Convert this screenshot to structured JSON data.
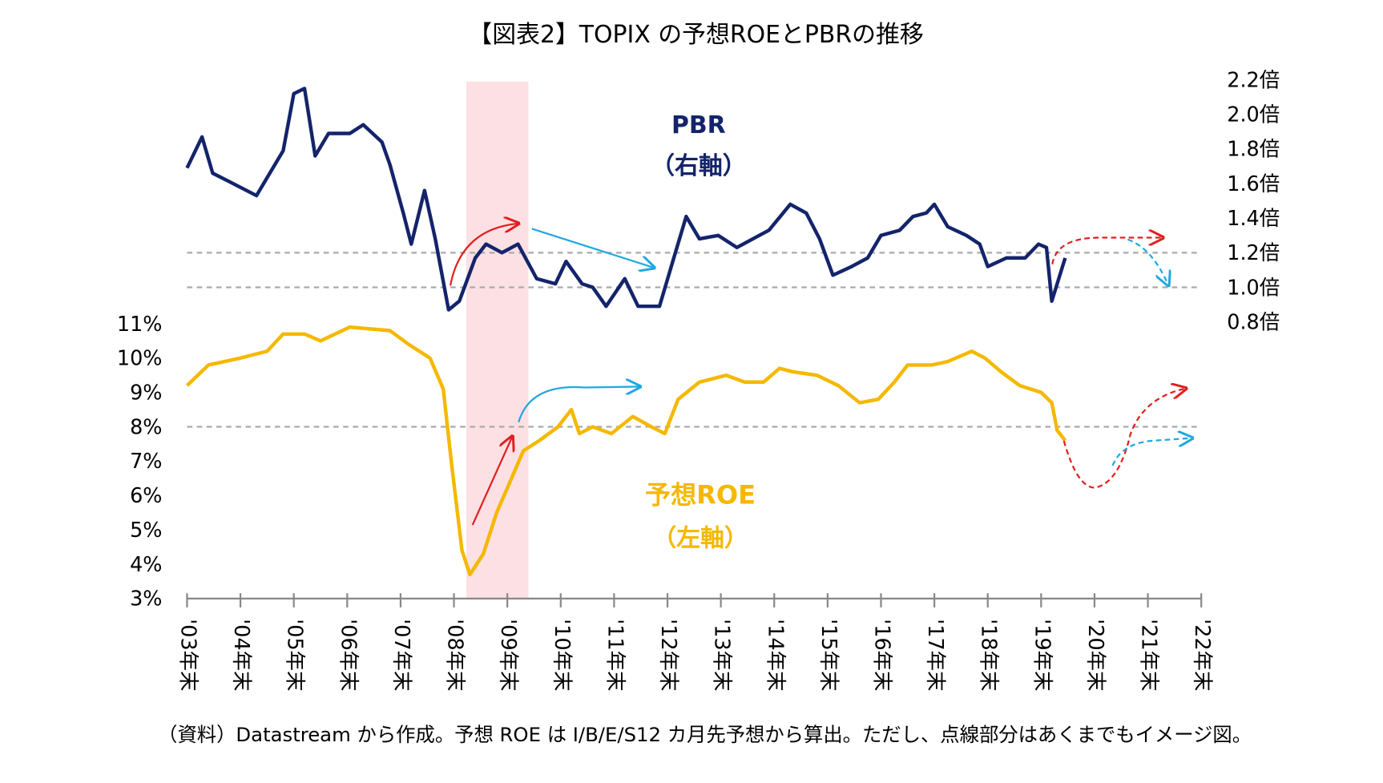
{
  "chart_data": {
    "type": "line",
    "title": "【図表2】TOPIX の予想ROEとPBRの推移",
    "source": "（資料）Datastream から作成。予想 ROE は I/B/E/S12 カ月先予想から算出。ただし、点線部分はあくまでもイメージ図。",
    "xlim": [
      2003,
      2022
    ],
    "xticks": [
      {
        "value": 2003,
        "label": "'03年末"
      },
      {
        "value": 2004,
        "label": "'04年末"
      },
      {
        "value": 2005,
        "label": "'05年末"
      },
      {
        "value": 2006,
        "label": "'06年末"
      },
      {
        "value": 2007,
        "label": "'07年末"
      },
      {
        "value": 2008,
        "label": "'08年末"
      },
      {
        "value": 2009,
        "label": "'09年末"
      },
      {
        "value": 2010,
        "label": "'10年末"
      },
      {
        "value": 2011,
        "label": "'11年末"
      },
      {
        "value": 2012,
        "label": "'12年末"
      },
      {
        "value": 2013,
        "label": "'13年末"
      },
      {
        "value": 2014,
        "label": "'14年末"
      },
      {
        "value": 2015,
        "label": "'15年末"
      },
      {
        "value": 2016,
        "label": "'16年末"
      },
      {
        "value": 2017,
        "label": "'17年末"
      },
      {
        "value": 2018,
        "label": "'18年末"
      },
      {
        "value": 2019,
        "label": "'19年末"
      },
      {
        "value": 2020,
        "label": "'20年末"
      },
      {
        "value": 2021,
        "label": "'21年末"
      },
      {
        "value": 2022,
        "label": "'22年末"
      }
    ],
    "ylim": [
      3,
      18.1
    ],
    "yticks": [
      {
        "value": 3,
        "label": "3%"
      },
      {
        "value": 4,
        "label": "4%"
      },
      {
        "value": 5,
        "label": "5%"
      },
      {
        "value": 6,
        "label": "6%"
      },
      {
        "value": 7,
        "label": "7%"
      },
      {
        "value": 8,
        "label": "8%"
      },
      {
        "value": 9,
        "label": "9%"
      },
      {
        "value": 10,
        "label": "10%"
      },
      {
        "value": 11,
        "label": "11%"
      }
    ],
    "y2lim": [
      -0.8,
      2.2
    ],
    "y2ticks": [
      {
        "value": 0.8,
        "label": "0.8倍"
      },
      {
        "value": 1.0,
        "label": "1.0倍"
      },
      {
        "value": 1.2,
        "label": "1.2倍"
      },
      {
        "value": 1.4,
        "label": "1.4倍"
      },
      {
        "value": 1.6,
        "label": "1.6倍"
      },
      {
        "value": 1.8,
        "label": "1.8倍"
      },
      {
        "value": 2.0,
        "label": "2.0倍"
      },
      {
        "value": 2.2,
        "label": "2.2倍"
      }
    ],
    "reference_lines": {
      "y": [
        8
      ],
      "y2": [
        1.0,
        1.2
      ]
    },
    "series": [
      {
        "name": "PBR",
        "axis_note": "（右軸）",
        "axis": "y2",
        "color": "#14246b",
        "x": [
          2003.0,
          2003.28,
          2003.48,
          2003.8,
          2004.3,
          2004.55,
          2004.8,
          2005.0,
          2005.2,
          2005.4,
          2005.65,
          2006.05,
          2006.3,
          2006.65,
          2006.8,
          2007.05,
          2007.2,
          2007.45,
          2007.65,
          2007.9,
          2008.1,
          2008.4,
          2008.6,
          2008.9,
          2009.2,
          2009.55,
          2009.9,
          2010.1,
          2010.4,
          2010.6,
          2010.85,
          2011.2,
          2011.45,
          2011.85,
          2012.1,
          2012.35,
          2012.6,
          2012.95,
          2013.3,
          2013.6,
          2013.9,
          2014.3,
          2014.6,
          2014.85,
          2015.1,
          2015.45,
          2015.75,
          2016.0,
          2016.35,
          2016.6,
          2016.85,
          2017.0,
          2017.25,
          2017.6,
          2017.85,
          2018.0,
          2018.35,
          2018.7,
          2018.95,
          2019.1,
          2019.2,
          2019.45
        ],
        "values": [
          1.69,
          1.87,
          1.66,
          1.61,
          1.53,
          1.66,
          1.79,
          2.12,
          2.15,
          1.76,
          1.89,
          1.89,
          1.94,
          1.84,
          1.71,
          1.43,
          1.25,
          1.56,
          1.28,
          0.87,
          0.92,
          1.17,
          1.25,
          1.2,
          1.25,
          1.05,
          1.02,
          1.15,
          1.02,
          1.0,
          0.89,
          1.05,
          0.89,
          0.89,
          1.15,
          1.41,
          1.28,
          1.3,
          1.23,
          1.28,
          1.33,
          1.48,
          1.43,
          1.28,
          1.07,
          1.12,
          1.17,
          1.3,
          1.33,
          1.41,
          1.43,
          1.48,
          1.35,
          1.3,
          1.25,
          1.12,
          1.17,
          1.17,
          1.25,
          1.23,
          0.92,
          1.17
        ]
      },
      {
        "name": "予想ROE",
        "axis_note": "（左軸）",
        "color": "#f5b800",
        "x": [
          2003.0,
          2003.4,
          2004.0,
          2004.5,
          2004.8,
          2005.2,
          2005.5,
          2006.05,
          2006.8,
          2007.15,
          2007.55,
          2007.8,
          2007.95,
          2008.15,
          2008.3,
          2008.55,
          2008.8,
          2009.05,
          2009.3,
          2009.6,
          2009.95,
          2010.2,
          2010.35,
          2010.6,
          2010.95,
          2011.35,
          2011.7,
          2011.95,
          2012.2,
          2012.6,
          2013.1,
          2013.45,
          2013.8,
          2014.1,
          2014.35,
          2014.8,
          2015.2,
          2015.6,
          2015.95,
          2016.25,
          2016.5,
          2016.95,
          2017.25,
          2017.7,
          2017.95,
          2018.25,
          2018.6,
          2019.0,
          2019.2,
          2019.3,
          2019.45
        ],
        "values": [
          9.2,
          9.8,
          10.0,
          10.2,
          10.7,
          10.7,
          10.5,
          10.9,
          10.8,
          10.4,
          10.0,
          9.1,
          7.0,
          4.4,
          3.7,
          4.3,
          5.5,
          6.4,
          7.3,
          7.6,
          8.0,
          8.5,
          7.8,
          8.0,
          7.8,
          8.3,
          8.0,
          7.8,
          8.8,
          9.3,
          9.5,
          9.3,
          9.3,
          9.7,
          9.6,
          9.5,
          9.2,
          8.7,
          8.8,
          9.3,
          9.8,
          9.8,
          9.9,
          10.2,
          10.0,
          9.6,
          9.2,
          9.0,
          8.7,
          7.9,
          7.6
        ]
      }
    ]
  }
}
